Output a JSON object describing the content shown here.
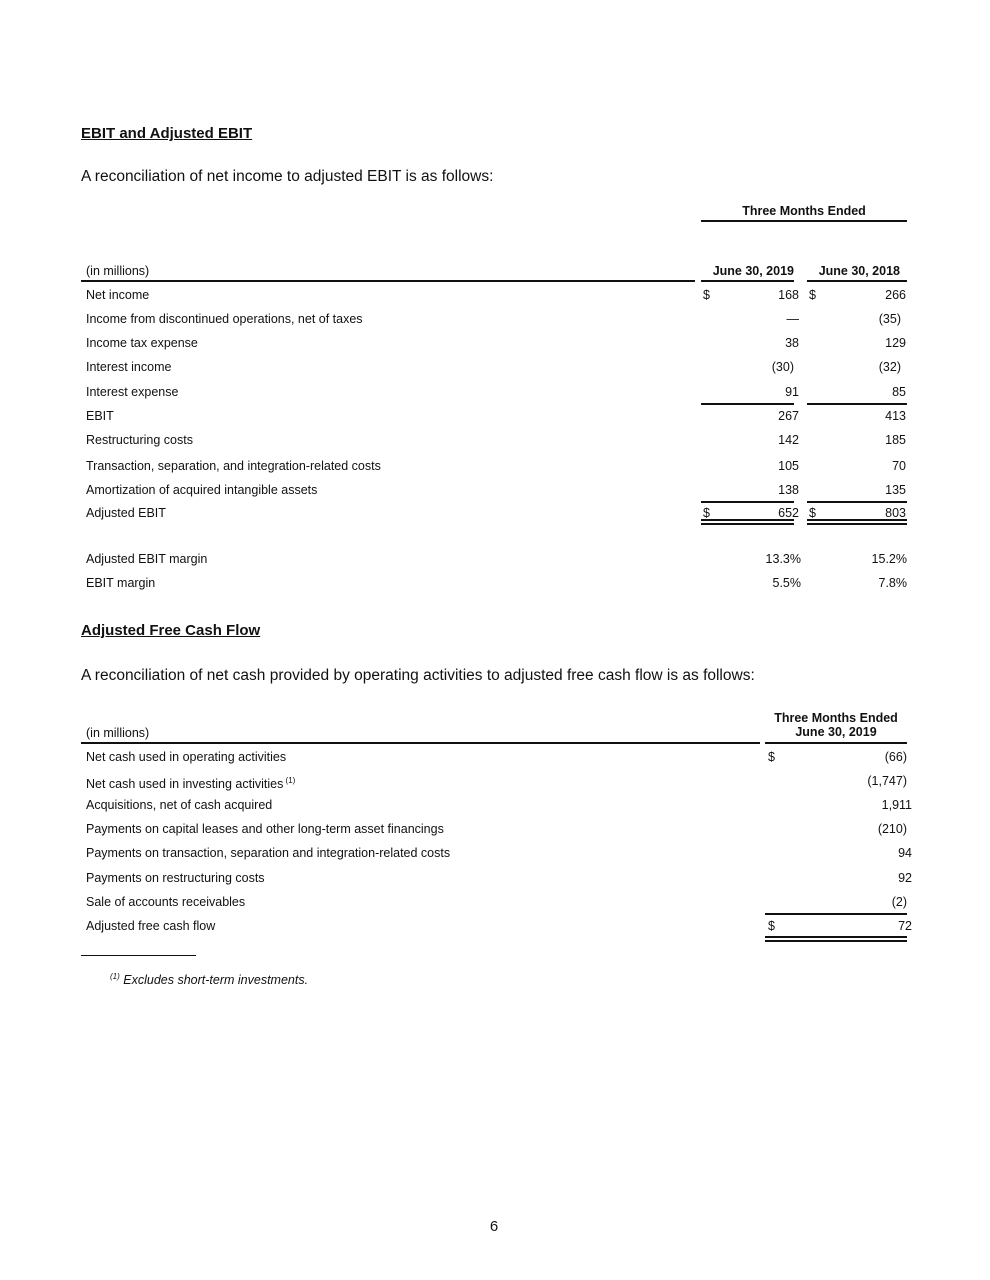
{
  "ebit": {
    "heading": "EBIT and Adjusted EBIT",
    "intro": "A reconciliation of net income to adjusted EBIT is as follows:",
    "period_header": "Three Months Ended",
    "units_label": "(in millions)",
    "columns": [
      "June 30, 2019",
      "June 30, 2018"
    ],
    "rows": [
      {
        "label": "Net income",
        "dollar": true,
        "values": [
          "168",
          "266"
        ]
      },
      {
        "label": "Income from discontinued operations, net of taxes",
        "values": [
          "—",
          "(35)"
        ]
      },
      {
        "label": "Income tax expense",
        "values": [
          "38",
          "129"
        ]
      },
      {
        "label": "Interest income",
        "values": [
          "(30)",
          "(32)"
        ]
      },
      {
        "label": "Interest expense",
        "values": [
          "91",
          "85"
        ]
      },
      {
        "label": "EBIT",
        "values": [
          "267",
          "413"
        ]
      },
      {
        "label": "Restructuring costs",
        "values": [
          "142",
          "185"
        ]
      },
      {
        "label": "Transaction, separation, and integration-related costs",
        "values": [
          "105",
          "70"
        ]
      },
      {
        "label": "Amortization of acquired intangible assets",
        "values": [
          "138",
          "135"
        ]
      },
      {
        "label": "Adjusted EBIT",
        "dollar": true,
        "values": [
          "652",
          "803"
        ]
      }
    ],
    "margins": [
      {
        "label": "Adjusted EBIT margin",
        "values": [
          "13.3%",
          "15.2%"
        ]
      },
      {
        "label": "EBIT margin",
        "values": [
          "5.5%",
          "7.8%"
        ]
      }
    ]
  },
  "fcf": {
    "heading": "Adjusted Free Cash Flow",
    "intro": "A reconciliation of net cash provided by operating activities to adjusted free cash flow is as follows:",
    "units_label": "(in millions)",
    "column_line1": "Three Months Ended",
    "column_line2": "June 30, 2019",
    "rows": [
      {
        "label": "Net cash used in operating activities",
        "dollar": true,
        "value": "(66)"
      },
      {
        "label": "Net cash used in investing activities",
        "footnote": "(1)",
        "value": "(1,747)"
      },
      {
        "label": "Acquisitions, net of cash acquired",
        "value": "1,911"
      },
      {
        "label": "Payments on capital leases and other long-term asset financings",
        "value": "(210)"
      },
      {
        "label": "Payments on transaction, separation and integration-related costs",
        "value": "94"
      },
      {
        "label": "Payments on restructuring costs",
        "value": "92"
      },
      {
        "label": "Sale of accounts receivables",
        "value": "(2)"
      },
      {
        "label": "Adjusted free cash flow",
        "dollar": true,
        "value": "72"
      }
    ]
  },
  "footnote": {
    "marker": "(1)",
    "text": "Excludes short-term investments."
  },
  "currency_symbol": "$",
  "page_number": "6"
}
